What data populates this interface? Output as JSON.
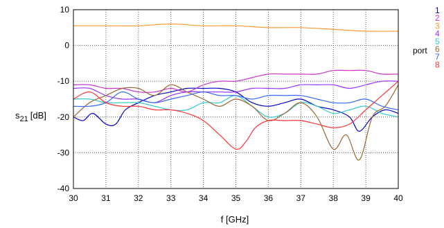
{
  "chart_data": {
    "type": "line",
    "title": "",
    "xlabel": "f [GHz]",
    "ylabel_main": "s",
    "ylabel_sub": "21",
    "ylabel_unit": "[dB]",
    "xlim": [
      30,
      40
    ],
    "ylim": [
      -40,
      10
    ],
    "xticks": [
      30,
      31,
      32,
      33,
      34,
      35,
      36,
      37,
      38,
      39,
      40
    ],
    "yticks": [
      -40,
      -30,
      -20,
      -10,
      0,
      10
    ],
    "grid": true,
    "legend_title": "port",
    "legend_placement": "right",
    "series": [
      {
        "name": "1",
        "color": "#0000cc",
        "points": [
          [
            30,
            -20
          ],
          [
            30.3,
            -21
          ],
          [
            30.6,
            -19
          ],
          [
            31,
            -22
          ],
          [
            31.3,
            -22
          ],
          [
            31.6,
            -18
          ],
          [
            32,
            -16
          ],
          [
            32.5,
            -14
          ],
          [
            33,
            -13
          ],
          [
            33.5,
            -12
          ],
          [
            34,
            -12
          ],
          [
            34.5,
            -12
          ],
          [
            35,
            -13
          ],
          [
            35.5,
            -16
          ],
          [
            36,
            -17
          ],
          [
            36.5,
            -16
          ],
          [
            37,
            -15
          ],
          [
            37.5,
            -17
          ],
          [
            38,
            -18
          ],
          [
            38.5,
            -20
          ],
          [
            38.8,
            -24
          ],
          [
            39.2,
            -20
          ],
          [
            39.6,
            -18
          ],
          [
            40,
            -19
          ]
        ]
      },
      {
        "name": "2",
        "color": "#cc33cc",
        "points": [
          [
            30,
            -11
          ],
          [
            30.5,
            -11
          ],
          [
            31,
            -12
          ],
          [
            31.5,
            -12
          ],
          [
            32,
            -13
          ],
          [
            32.5,
            -13
          ],
          [
            33,
            -12
          ],
          [
            33.5,
            -13
          ],
          [
            34,
            -11
          ],
          [
            34.5,
            -10
          ],
          [
            35,
            -10
          ],
          [
            35.5,
            -9
          ],
          [
            36,
            -8
          ],
          [
            36.5,
            -8
          ],
          [
            37,
            -8
          ],
          [
            37.5,
            -8
          ],
          [
            38,
            -7
          ],
          [
            38.5,
            -7
          ],
          [
            39,
            -7
          ],
          [
            39.5,
            -8
          ],
          [
            40,
            -8
          ]
        ]
      },
      {
        "name": "3",
        "color": "#ff9933",
        "points": [
          [
            30,
            5.5
          ],
          [
            31,
            5.5
          ],
          [
            32,
            5.5
          ],
          [
            33,
            6
          ],
          [
            34,
            5.5
          ],
          [
            35,
            5.5
          ],
          [
            36,
            5
          ],
          [
            37,
            5
          ],
          [
            38,
            4.5
          ],
          [
            39,
            4
          ],
          [
            40,
            4
          ]
        ]
      },
      {
        "name": "4",
        "color": "#9933ff",
        "points": [
          [
            30,
            -12
          ],
          [
            30.5,
            -12
          ],
          [
            31,
            -14
          ],
          [
            31.5,
            -15
          ],
          [
            32,
            -15
          ],
          [
            32.5,
            -16
          ],
          [
            33,
            -14
          ],
          [
            33.5,
            -13
          ],
          [
            34,
            -13
          ],
          [
            34.5,
            -13
          ],
          [
            35,
            -13
          ],
          [
            35.5,
            -12
          ],
          [
            36,
            -12
          ],
          [
            36.5,
            -12
          ],
          [
            37,
            -11
          ],
          [
            37.5,
            -11
          ],
          [
            38,
            -11
          ],
          [
            38.5,
            -12
          ],
          [
            39,
            -11
          ],
          [
            39.5,
            -10
          ],
          [
            40,
            -10
          ]
        ]
      },
      {
        "name": "5",
        "color": "#33cccc",
        "points": [
          [
            30,
            -15
          ],
          [
            30.5,
            -15
          ],
          [
            31,
            -16
          ],
          [
            31.5,
            -16
          ],
          [
            32,
            -16
          ],
          [
            32.5,
            -17
          ],
          [
            33,
            -18
          ],
          [
            33.5,
            -18
          ],
          [
            34,
            -16
          ],
          [
            34.5,
            -16
          ],
          [
            35,
            -14
          ],
          [
            35.5,
            -17
          ],
          [
            36,
            -20
          ],
          [
            36.5,
            -19
          ],
          [
            37,
            -16
          ],
          [
            37.5,
            -17
          ],
          [
            38,
            -19
          ],
          [
            38.5,
            -18
          ],
          [
            39,
            -17
          ],
          [
            39.5,
            -19
          ],
          [
            40,
            -20
          ]
        ]
      },
      {
        "name": "6",
        "color": "#996633",
        "points": [
          [
            30,
            -20
          ],
          [
            30.5,
            -16
          ],
          [
            31,
            -14
          ],
          [
            31.5,
            -12
          ],
          [
            32,
            -12
          ],
          [
            32.5,
            -14
          ],
          [
            33,
            -11
          ],
          [
            33.5,
            -13
          ],
          [
            34,
            -15
          ],
          [
            34.5,
            -17
          ],
          [
            35,
            -15
          ],
          [
            35.5,
            -17
          ],
          [
            36,
            -21
          ],
          [
            36.5,
            -19
          ],
          [
            37,
            -16
          ],
          [
            37.5,
            -20
          ],
          [
            38,
            -29
          ],
          [
            38.4,
            -25
          ],
          [
            38.8,
            -32
          ],
          [
            39.2,
            -20
          ],
          [
            39.6,
            -17
          ],
          [
            40,
            -11
          ]
        ]
      },
      {
        "name": "7",
        "color": "#3366ff",
        "points": [
          [
            30,
            -17
          ],
          [
            30.5,
            -17
          ],
          [
            31,
            -16
          ],
          [
            31.5,
            -13
          ],
          [
            32,
            -15
          ],
          [
            32.5,
            -16
          ],
          [
            33,
            -15
          ],
          [
            33.5,
            -14
          ],
          [
            34,
            -13
          ],
          [
            34.5,
            -14
          ],
          [
            35,
            -14
          ],
          [
            35.5,
            -15
          ],
          [
            36,
            -14
          ],
          [
            36.5,
            -14
          ],
          [
            37,
            -14
          ],
          [
            37.5,
            -15
          ],
          [
            38,
            -16
          ],
          [
            38.5,
            -16
          ],
          [
            39,
            -15
          ],
          [
            39.5,
            -17
          ],
          [
            40,
            -18
          ]
        ]
      },
      {
        "name": "8",
        "color": "#ff3333",
        "points": [
          [
            30,
            -15
          ],
          [
            30.5,
            -13
          ],
          [
            31,
            -16
          ],
          [
            31.5,
            -17
          ],
          [
            32,
            -17
          ],
          [
            32.5,
            -18
          ],
          [
            33,
            -18
          ],
          [
            33.5,
            -19
          ],
          [
            34,
            -21
          ],
          [
            34.5,
            -25
          ],
          [
            35,
            -29
          ],
          [
            35.3,
            -27
          ],
          [
            35.6,
            -23
          ],
          [
            36,
            -21
          ],
          [
            36.5,
            -21
          ],
          [
            37,
            -21
          ],
          [
            37.5,
            -22
          ],
          [
            38,
            -23
          ],
          [
            38.5,
            -22
          ],
          [
            39,
            -18
          ],
          [
            39.5,
            -14
          ],
          [
            40,
            -10
          ]
        ]
      }
    ]
  }
}
